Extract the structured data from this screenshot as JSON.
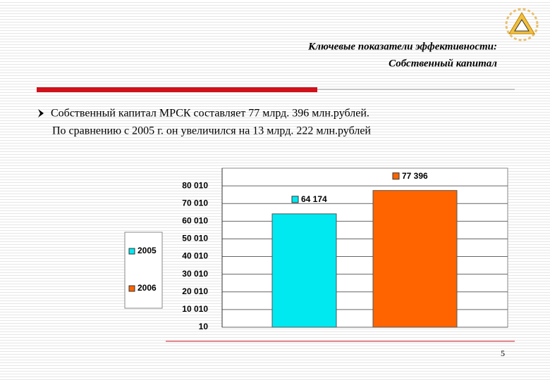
{
  "header": {
    "title_lines": [
      "Ключевые показатели эффективности:",
      "Собственный капитал"
    ]
  },
  "bullet": {
    "lines": [
      "Собственный капитал  МРСК составляет  77 млрд. 396 млн.рублей.",
      "По сравнению с 2005 г. он увеличился на 13 млрд. 222 млн.рублей"
    ]
  },
  "chart_data": {
    "type": "bar",
    "series": [
      {
        "name": "2005",
        "color": "#00e8f0",
        "values": [
          64174
        ],
        "value_labels": [
          "64 174"
        ]
      },
      {
        "name": "2006",
        "color": "#ff6400",
        "values": [
          77396
        ],
        "value_labels": [
          "77 396"
        ]
      }
    ],
    "ylim": [
      10,
      90010
    ],
    "yticks": [
      10,
      {
        "value": 10010,
        "label": "10 010"
      },
      {
        "value": 20010,
        "label": "20 010"
      },
      {
        "value": 30010,
        "label": "30 010"
      },
      {
        "value": 40010,
        "label": "40 010"
      },
      {
        "value": 50010,
        "label": "50 010"
      },
      {
        "value": 60010,
        "label": "60 010"
      },
      {
        "value": 70010,
        "label": "70 010"
      },
      {
        "value": 80010,
        "label": "80 010"
      }
    ],
    "grid": true,
    "legend": "left"
  },
  "footer": {
    "page": "5"
  }
}
